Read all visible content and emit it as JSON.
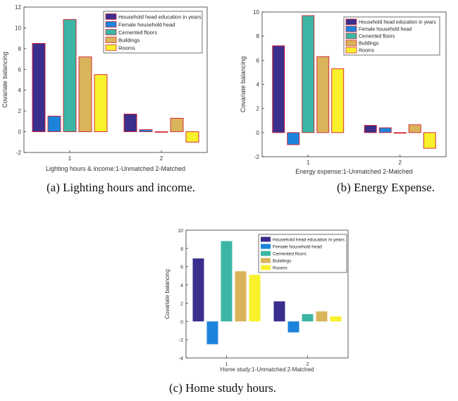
{
  "colors": {
    "education": "#3a2f8d",
    "female": "#1c83db",
    "cemented": "#3bb6a4",
    "buildings": "#d9b45b",
    "rooms": "#f8f12b",
    "bar_edge": "#d31b2c"
  },
  "chart_data": [
    {
      "type": "bar",
      "ylabel": "Covariate balancing",
      "xlabel": "Lighting hours & income:1-Unmatched 2-Matched",
      "categories": [
        "1",
        "2"
      ],
      "ylim": [
        -2,
        12
      ],
      "yticks": [
        "-2",
        "0",
        "2",
        "4",
        "6",
        "8",
        "10",
        "12"
      ],
      "edge": true,
      "series": [
        {
          "name": "Household head education in years",
          "values": [
            8.5,
            1.7
          ]
        },
        {
          "name": "Female household head",
          "values": [
            1.5,
            0.2
          ]
        },
        {
          "name": "Cemented floors",
          "values": [
            10.8,
            0.0
          ]
        },
        {
          "name": "Buildings",
          "values": [
            7.2,
            1.3
          ]
        },
        {
          "name": "Rooms",
          "values": [
            5.5,
            -1.0
          ]
        }
      ]
    },
    {
      "type": "bar",
      "ylabel": "Covariate balancing",
      "xlabel": "Energy expense:1-Unmatched 2-Matched",
      "categories": [
        "1",
        "2"
      ],
      "ylim": [
        -2,
        10
      ],
      "yticks": [
        "-2",
        "0",
        "2",
        "4",
        "6",
        "8",
        "10"
      ],
      "edge": true,
      "series": [
        {
          "name": "Household head education in years",
          "values": [
            7.2,
            0.6
          ]
        },
        {
          "name": "Female household head",
          "values": [
            -1.0,
            0.4
          ]
        },
        {
          "name": "Cemented floors",
          "values": [
            9.7,
            -0.05
          ]
        },
        {
          "name": "Buildings",
          "values": [
            6.3,
            0.65
          ]
        },
        {
          "name": "Rooms",
          "values": [
            5.3,
            -1.3
          ]
        }
      ]
    },
    {
      "type": "bar",
      "ylabel": "Covariate balancing",
      "xlabel": "Home study:1-Unmatched 2-Matched",
      "categories": [
        "1",
        "2"
      ],
      "ylim": [
        -4,
        10
      ],
      "yticks": [
        "-4",
        "-2",
        "0",
        "2",
        "4",
        "6",
        "8",
        "10"
      ],
      "edge": false,
      "series": [
        {
          "name": "Household head education in years",
          "values": [
            6.9,
            2.2
          ]
        },
        {
          "name": "Female household head",
          "values": [
            -2.5,
            -1.2
          ]
        },
        {
          "name": "Cemented floors",
          "values": [
            8.8,
            0.8
          ]
        },
        {
          "name": "Buildings",
          "values": [
            5.5,
            1.1
          ]
        },
        {
          "name": "Rooms",
          "values": [
            5.1,
            0.55
          ]
        }
      ]
    }
  ],
  "captions": {
    "a": "(a) Lighting hours and income.",
    "b": "(b) Energy Expense.",
    "c": "(c) Home study hours."
  }
}
